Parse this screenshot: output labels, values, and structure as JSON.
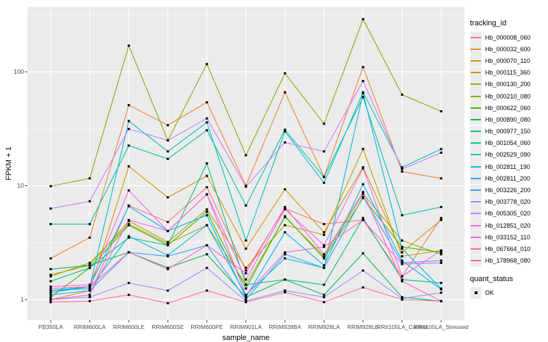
{
  "figure": {
    "background": "#FFFFFF",
    "panel_background": "#EBEBEB",
    "grid_color": "#FFFFFF",
    "tick_color": "#333333",
    "tick_label_color": "#4D4D4D",
    "point_color": "#000000"
  },
  "chart_data": {
    "type": "line",
    "title": "",
    "xlabel": "sample_name",
    "ylabel": "FPKM + 1",
    "y_scale": "log10",
    "y_ticks": [
      "1",
      "10",
      "100"
    ],
    "ylim": [
      0.66,
      370
    ],
    "grid": true,
    "legend_position": "right",
    "point_shape": "black-square",
    "categories": [
      "PB350LA",
      "RRIM600LA",
      "RRIM600LE",
      "RRIM600SE",
      "RRIM600PE",
      "RRIM901LA",
      "RRIM928BA",
      "RRIM928LA",
      "RRIM928LE",
      "RRII105LA_Control",
      "RRII105LA_Stressed"
    ],
    "series": [
      {
        "name": "Hb_000008_060",
        "color": "#F8766D",
        "values": [
          1.0,
          1.1,
          6.7,
          4.8,
          9.7,
          1.8,
          6.3,
          4.6,
          5.0,
          1.6,
          5.2
        ]
      },
      {
        "name": "Hb_000032_600",
        "color": "#EA8331",
        "values": [
          2.3,
          3.5,
          51,
          34,
          54,
          10,
          66,
          12,
          110,
          13.3,
          11.6
        ]
      },
      {
        "name": "Hb_000070_110",
        "color": "#D89000",
        "values": [
          1.0,
          1.2,
          14.8,
          7.9,
          12.2,
          2.8,
          9.3,
          3.9,
          14.5,
          2.6,
          5.0
        ]
      },
      {
        "name": "Hb_000115_360",
        "color": "#C09B00",
        "values": [
          1.65,
          2.0,
          4.9,
          3.2,
          6.2,
          1.9,
          4.5,
          3.7,
          21,
          2.4,
          2.7
        ]
      },
      {
        "name": "Hb_000130_200",
        "color": "#A3A500",
        "values": [
          1.6,
          2.1,
          4.6,
          3.1,
          4.5,
          1.35,
          5.3,
          2.4,
          8.5,
          3.3,
          2.5
        ]
      },
      {
        "name": "Hb_000210_080",
        "color": "#7CAE00",
        "values": [
          9.9,
          11.6,
          170,
          25,
          117,
          18.5,
          97,
          35,
          290,
          63,
          45
        ]
      },
      {
        "name": "Hb_000622_060",
        "color": "#39B600",
        "values": [
          1.05,
          1.9,
          4.5,
          3.0,
          5.9,
          1.25,
          5.4,
          2.3,
          7.8,
          2.9,
          2.6
        ]
      },
      {
        "name": "Hb_000890_080",
        "color": "#00BB4E",
        "values": [
          1.85,
          2.0,
          2.6,
          1.9,
          2.5,
          1.05,
          1.5,
          1.1,
          2.55,
          1.05,
          0.97
        ]
      },
      {
        "name": "Hb_000977_150",
        "color": "#00BF7D",
        "values": [
          1.45,
          1.9,
          3.5,
          3.0,
          15.7,
          1.35,
          1.5,
          1.35,
          5.2,
          1.5,
          1.4
        ]
      },
      {
        "name": "Hb_001054_060",
        "color": "#00C1A3",
        "values": [
          4.6,
          4.6,
          22.5,
          17.2,
          30.7,
          6.7,
          31,
          11.9,
          60,
          5.5,
          6.5
        ]
      },
      {
        "name": "Hb_002529_090",
        "color": "#00BFC4",
        "values": [
          1.2,
          1.3,
          37,
          20,
          36,
          3.3,
          30,
          10.6,
          66,
          14.5,
          21
        ]
      },
      {
        "name": "Hb_002811_190",
        "color": "#00BAE0",
        "values": [
          1.2,
          1.25,
          3.6,
          2.45,
          4.5,
          1.1,
          2.3,
          1.9,
          65,
          2.8,
          1.25
        ]
      },
      {
        "name": "Hb_002811_200",
        "color": "#00B0F6",
        "values": [
          1.15,
          1.3,
          6.6,
          4.0,
          5.5,
          1.05,
          3.9,
          2.0,
          10.3,
          2.2,
          1.23
        ]
      },
      {
        "name": "Hb_003226_200",
        "color": "#35A2FF",
        "values": [
          1.1,
          1.2,
          2.6,
          2.4,
          3.0,
          1.0,
          2.5,
          1.9,
          8.0,
          2.1,
          2.2
        ]
      },
      {
        "name": "Hb_003778_020",
        "color": "#9590FF",
        "values": [
          1.0,
          1.05,
          1.4,
          1.2,
          1.9,
          0.97,
          1.2,
          1.05,
          1.8,
          1.02,
          1.15
        ]
      },
      {
        "name": "Hb_005305_020",
        "color": "#C77CFF",
        "values": [
          6.3,
          7.3,
          31.5,
          25,
          39,
          9.8,
          24,
          20,
          83,
          14,
          19.5
        ]
      },
      {
        "name": "Hb_012851_020",
        "color": "#E76BF3",
        "values": [
          1.0,
          1.1,
          5.0,
          4.0,
          8.4,
          1.5,
          6.2,
          3.0,
          14.2,
          1.6,
          2.7
        ]
      },
      {
        "name": "Hb_033152_110",
        "color": "#FA62DB",
        "values": [
          1.3,
          1.35,
          9.1,
          4.0,
          8.4,
          1.1,
          2.6,
          2.9,
          5.0,
          2.05,
          2.1
        ]
      },
      {
        "name": "Hb_067664_010",
        "color": "#FF62BC",
        "values": [
          1.25,
          1.3,
          2.6,
          1.85,
          3.0,
          1.7,
          6.5,
          2.5,
          8.8,
          1.45,
          0.97
        ]
      },
      {
        "name": "Hb_178968_080",
        "color": "#FF6A98",
        "values": [
          0.95,
          0.97,
          1.1,
          0.93,
          1.2,
          0.95,
          1.16,
          0.95,
          1.28,
          1.0,
          0.97
        ]
      }
    ],
    "legend": {
      "tracking_title": "tracking_id",
      "quant_title": "quant_status",
      "quant_items": [
        {
          "label": "OK"
        }
      ]
    }
  }
}
